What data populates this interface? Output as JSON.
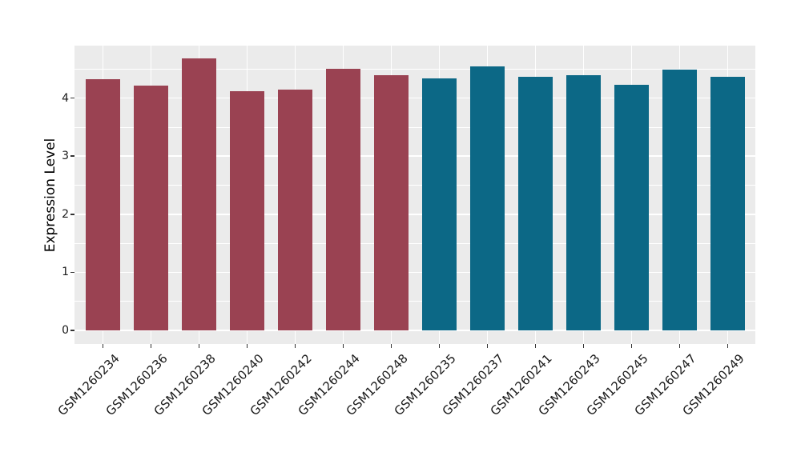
{
  "figure": {
    "background": "#ffffff"
  },
  "chart_data": {
    "type": "bar",
    "title": "",
    "xlabel": "",
    "ylabel": "Expression Level",
    "categories": [
      "GSM1260234",
      "GSM1260236",
      "GSM1260238",
      "GSM1260240",
      "GSM1260242",
      "GSM1260244",
      "GSM1260248",
      "GSM1260235",
      "GSM1260237",
      "GSM1260241",
      "GSM1260243",
      "GSM1260245",
      "GSM1260247",
      "GSM1260249"
    ],
    "values": [
      4.33,
      4.22,
      4.68,
      4.12,
      4.14,
      4.51,
      4.39,
      4.34,
      4.54,
      4.37,
      4.39,
      4.23,
      4.49,
      4.37
    ],
    "bar_colors": [
      "#9A4252",
      "#9A4252",
      "#9A4252",
      "#9A4252",
      "#9A4252",
      "#9A4252",
      "#9A4252",
      "#0C6886",
      "#0C6886",
      "#0C6886",
      "#0C6886",
      "#0C6886",
      "#0C6886",
      "#0C6886"
    ],
    "group_palette": {
      "left_group": "#9A4252",
      "right_group": "#0C6886"
    },
    "ylim": [
      0,
      4.9
    ],
    "yticks": [
      0,
      1,
      2,
      3,
      4
    ],
    "yticks_minor": [
      0.5,
      1.5,
      2.5,
      3.5,
      4.5
    ],
    "legend_position": "none",
    "grid": {
      "horizontal_major": true,
      "horizontal_minor": true,
      "vertical_major": true
    },
    "panel_background": "#EBEBEB",
    "grid_color": "#FFFFFF",
    "tick_color": "#333333",
    "text_color": "#1a1a1a"
  }
}
